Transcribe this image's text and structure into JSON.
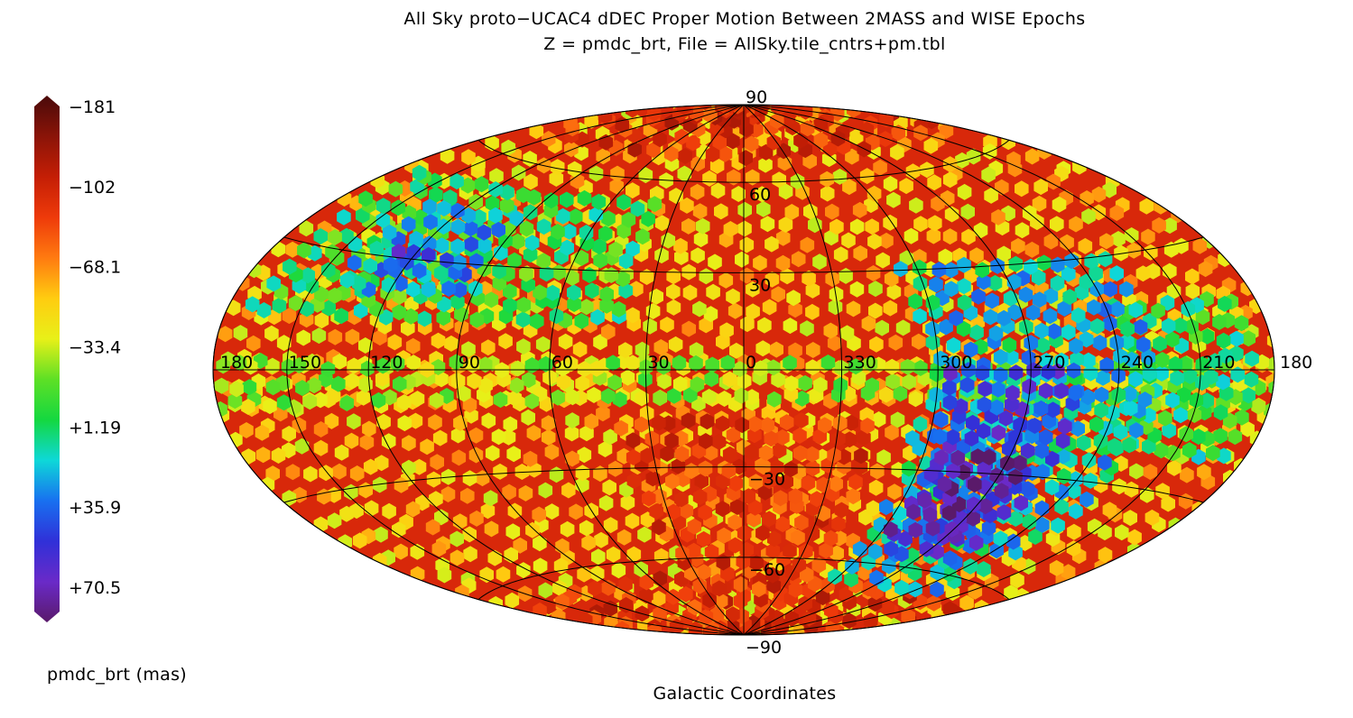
{
  "chart_data": {
    "type": "heatmap",
    "projection": "hammer-aitoff",
    "title": "All Sky proto−UCAC4 dDEC Proper Motion Between 2MASS and WISE Epochs",
    "subtitle": "Z = pmdc_brt, File = AllSky.tile_cntrs+pm.tbl",
    "xlabel": "Galactic Coordinates",
    "colorbar_label": "pmdc_brt (mas)",
    "colorbar_range": [
      -181,
      70.5
    ],
    "colorbar_ticks": [
      {
        "label": "−181",
        "value": -181
      },
      {
        "label": "−102",
        "value": -102
      },
      {
        "label": "−68.1",
        "value": -68.1
      },
      {
        "label": "−33.4",
        "value": -33.4
      },
      {
        "label": "+1.19",
        "value": 1.19
      },
      {
        "label": "+35.9",
        "value": 35.9
      },
      {
        "label": "+70.5",
        "value": 70.5
      }
    ],
    "colorbar_colors": [
      "#4a0a0a",
      "#8a1408",
      "#c41e05",
      "#ee3a0a",
      "#ff7a10",
      "#ffcc10",
      "#e8f018",
      "#5ee025",
      "#14d840",
      "#0ed8d8",
      "#1870f0",
      "#3030d8",
      "#6a2ac8",
      "#5a1a6a"
    ],
    "longitude_labels": [
      "180",
      "150",
      "120",
      "90",
      "60",
      "30",
      "0",
      "330",
      "300",
      "270",
      "240",
      "210",
      "180"
    ],
    "longitude_values": [
      180,
      150,
      120,
      90,
      60,
      30,
      0,
      -30,
      -60,
      -90,
      -120,
      -150,
      -180
    ],
    "latitude_labels": [
      "90",
      "60",
      "30",
      "−30",
      "−60",
      "−90"
    ],
    "latitude_values": [
      90,
      60,
      30,
      -30,
      -60,
      -90
    ],
    "regions": [
      {
        "name": "background",
        "lon": [
          -180,
          180
        ],
        "lat": [
          -90,
          90
        ],
        "value": -80
      },
      {
        "name": "pole-north",
        "lon": [
          -180,
          180
        ],
        "lat": [
          70,
          90
        ],
        "value": -130
      },
      {
        "name": "pole-south",
        "lon": [
          -180,
          180
        ],
        "lat": [
          -90,
          -65
        ],
        "value": -130
      },
      {
        "name": "south-central",
        "lon": [
          -40,
          40
        ],
        "lat": [
          -75,
          -15
        ],
        "value": -125
      },
      {
        "name": "galactic-plane-belt",
        "lon": [
          -180,
          180
        ],
        "lat": [
          -8,
          5
        ],
        "value": -55
      },
      {
        "name": "belt-north",
        "lon": [
          40,
          170
        ],
        "lat": [
          15,
          55
        ],
        "value": -30
      },
      {
        "name": "north-blob",
        "lon": [
          95,
          140
        ],
        "lat": [
          22,
          45
        ],
        "value": 5
      },
      {
        "name": "north-blue",
        "lon": [
          115,
          130
        ],
        "lat": [
          28,
          35
        ],
        "value": 30
      },
      {
        "name": "belt-west",
        "lon": [
          -170,
          -120
        ],
        "lat": [
          -20,
          20
        ],
        "value": -25
      },
      {
        "name": "south-green",
        "lon": [
          -130,
          -55
        ],
        "lat": [
          -65,
          30
        ],
        "value": -5
      },
      {
        "name": "south-blue",
        "lon": [
          -105,
          -62
        ],
        "lat": [
          -55,
          0
        ],
        "value": 30
      },
      {
        "name": "magellanic-purple",
        "lon": [
          -95,
          -65
        ],
        "lat": [
          -48,
          -25
        ],
        "value": 60
      }
    ]
  }
}
